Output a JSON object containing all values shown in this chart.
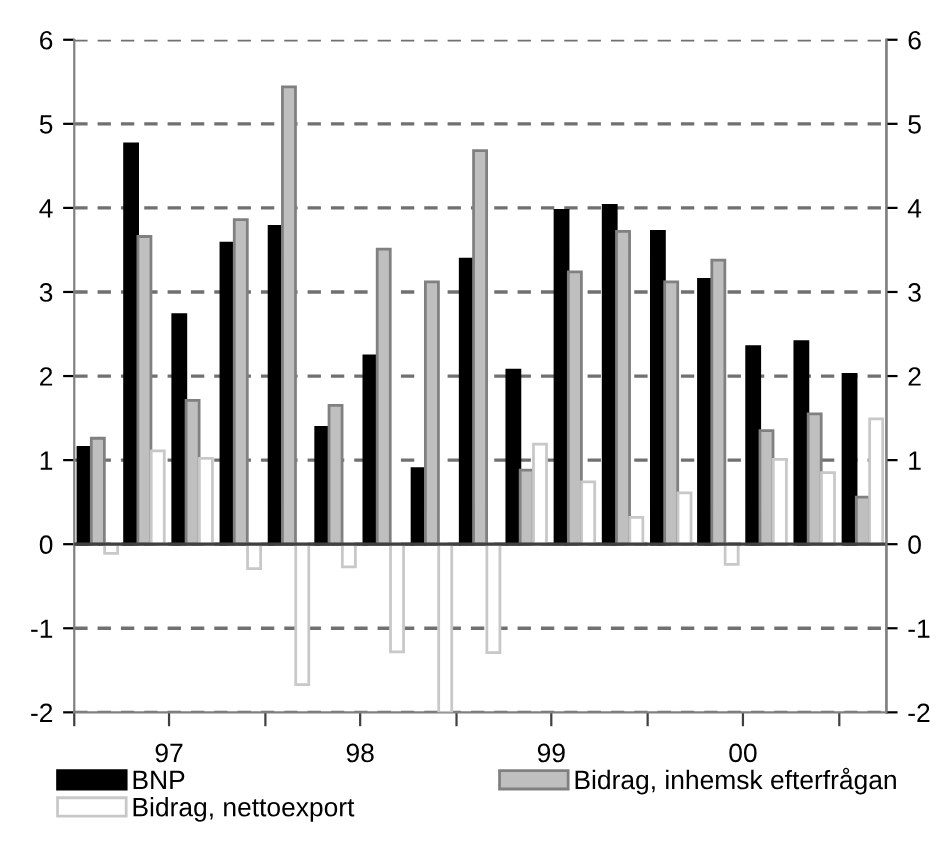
{
  "chart_data": {
    "type": "bar",
    "x": [
      "1997-02-15",
      "1997-05-15",
      "1997-08-15",
      "1997-11-15",
      "1998-02-15",
      "1998-05-15",
      "1998-08-15",
      "1998-11-15",
      "1999-02-15",
      "1999-05-15",
      "1999-08-15",
      "1999-11-15",
      "2000-02-15",
      "2000-05-15",
      "2000-08-15",
      "2000-11-15",
      "2001-02-15"
    ],
    "series": [
      {
        "name": "BNP",
        "color": "#000000",
        "values": [
          1.15,
          4.76,
          2.73,
          3.58,
          3.78,
          1.39,
          2.24,
          0.9,
          3.39,
          2.07,
          3.97,
          4.03,
          3.72,
          3.15,
          2.35,
          2.41,
          2.02
        ]
      },
      {
        "name": "Bidrag, inhemsk efterfrågan",
        "color": "#bfbfbf",
        "values": [
          1.26,
          3.66,
          1.71,
          3.86,
          5.44,
          1.65,
          3.51,
          3.12,
          4.68,
          0.88,
          3.24,
          3.72,
          3.12,
          3.38,
          1.35,
          1.55,
          0.56
        ]
      },
      {
        "name": "Bidrag, nettoexport",
        "color": "#ffffff",
        "values": [
          -0.11,
          1.11,
          1.02,
          -0.29,
          -1.67,
          -0.27,
          -1.28,
          -2.0,
          -1.29,
          1.19,
          0.74,
          0.32,
          0.61,
          -0.24,
          1.01,
          0.85,
          1.49
        ]
      }
    ],
    "xlim": [
      "1997-01",
      "2001-04"
    ],
    "xticks": [
      {
        "value": "1997-01",
        "label": null
      },
      {
        "value": "1997-07",
        "label": "97"
      },
      {
        "value": "1998-01",
        "label": null
      },
      {
        "value": "1998-07",
        "label": "98"
      },
      {
        "value": "1999-01",
        "label": null
      },
      {
        "value": "1999-07",
        "label": "99"
      },
      {
        "value": "2000-01",
        "label": null
      },
      {
        "value": "2000-07",
        "label": "00"
      },
      {
        "value": "2001-01",
        "label": null
      }
    ],
    "ylim": [
      -2,
      6
    ],
    "yticks": [
      -2,
      -1,
      0,
      1,
      2,
      3,
      4,
      5,
      6
    ],
    "y2lim": [
      -2,
      6
    ],
    "y2ticks": [
      -2,
      -1,
      0,
      1,
      2,
      3,
      4,
      5,
      6
    ],
    "grid": "y",
    "legend": "bottom"
  }
}
